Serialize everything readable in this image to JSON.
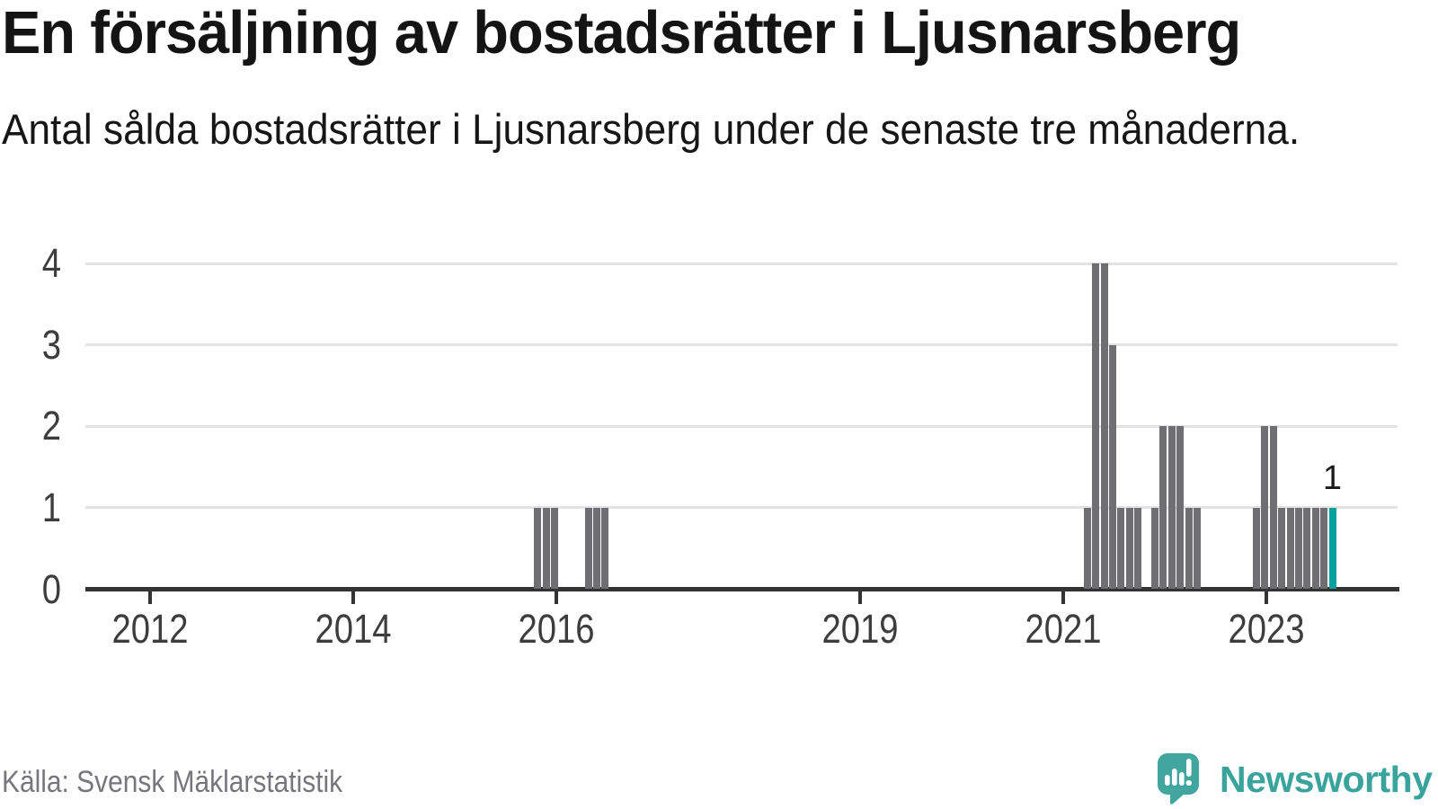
{
  "header": {
    "title": "En försäljning av bostadsrätter i Ljusnarsberg",
    "subtitle": "Antal sålda bostadsrätter i Ljusnarsberg under de senaste tre månaderna."
  },
  "footer": {
    "source": "Källa: Svensk Mäklarstatistik",
    "brand": "Newsworthy",
    "brand_icon": "newsworthy-speech-bubble-bar-chart-icon"
  },
  "colors": {
    "bar": "#6e6e73",
    "highlight": "#00a29b",
    "axis": "#333333",
    "gridline": "#e3e3e3",
    "tick_label": "#3d3d3d",
    "source_text": "#76767d",
    "brand_teal": "#3aa39b",
    "brand_icon_teal": "#41a69e"
  },
  "chart_data": {
    "type": "bar",
    "title": "En försäljning av bostadsrätter i Ljusnarsberg",
    "subtitle": "Antal sålda bostadsrätter i Ljusnarsberg under de senaste tre månaderna.",
    "xlabel": "",
    "ylabel": "",
    "ylim": [
      0,
      4
    ],
    "y_ticks": [
      0,
      1,
      2,
      3,
      4
    ],
    "x_ticks": [
      2012,
      2014,
      2016,
      2019,
      2021,
      2023
    ],
    "x_range_years": [
      2011.25,
      2023.95
    ],
    "grid": "horizontal",
    "legend": "none",
    "bar_period": "month",
    "bars": [
      {
        "month": "2015-10",
        "value": 1
      },
      {
        "month": "2015-11",
        "value": 1
      },
      {
        "month": "2015-12",
        "value": 1
      },
      {
        "month": "2016-04",
        "value": 1
      },
      {
        "month": "2016-05",
        "value": 1
      },
      {
        "month": "2016-06",
        "value": 1
      },
      {
        "month": "2021-03",
        "value": 1
      },
      {
        "month": "2021-04",
        "value": 4
      },
      {
        "month": "2021-05",
        "value": 4
      },
      {
        "month": "2021-06",
        "value": 3
      },
      {
        "month": "2021-07",
        "value": 1
      },
      {
        "month": "2021-08",
        "value": 1
      },
      {
        "month": "2021-09",
        "value": 1
      },
      {
        "month": "2021-11",
        "value": 1
      },
      {
        "month": "2021-12",
        "value": 2
      },
      {
        "month": "2022-01",
        "value": 2
      },
      {
        "month": "2022-02",
        "value": 2
      },
      {
        "month": "2022-03",
        "value": 1
      },
      {
        "month": "2022-04",
        "value": 1
      },
      {
        "month": "2022-11",
        "value": 1
      },
      {
        "month": "2022-12",
        "value": 2
      },
      {
        "month": "2023-01",
        "value": 2
      },
      {
        "month": "2023-02",
        "value": 1
      },
      {
        "month": "2023-03",
        "value": 1
      },
      {
        "month": "2023-04",
        "value": 1
      },
      {
        "month": "2023-05",
        "value": 1
      },
      {
        "month": "2023-06",
        "value": 1
      },
      {
        "month": "2023-07",
        "value": 1
      },
      {
        "month": "2023-08",
        "value": 1,
        "highlight": true,
        "label": "1"
      }
    ]
  }
}
